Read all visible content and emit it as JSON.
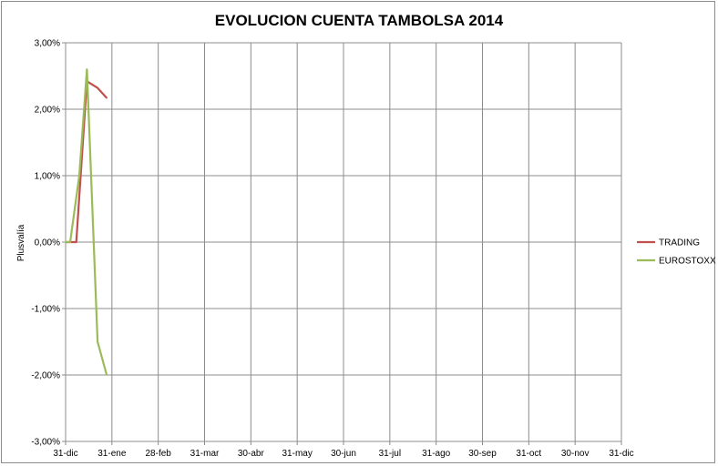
{
  "chart_data": {
    "type": "line",
    "title": "EVOLUCION CUENTA TAMBOLSA 2014",
    "ylabel": "Plusvalía",
    "xlabel": "",
    "x_ticks": [
      "31-dic",
      "31-ene",
      "28-feb",
      "31-mar",
      "30-abr",
      "31-may",
      "30-jun",
      "31-jul",
      "31-ago",
      "30-sep",
      "31-oct",
      "30-nov",
      "31-dic"
    ],
    "ylim": [
      -3,
      3
    ],
    "y_ticks": [
      3,
      2,
      1,
      0,
      -1,
      -2,
      -3
    ],
    "y_tick_labels": [
      "3,00%",
      "2,00%",
      "1,00%",
      "0,00%",
      "-1,00%",
      "-2,00%",
      "-3,00%"
    ],
    "x_range": [
      "2013-12-31",
      "2014-12-31"
    ],
    "grid": true,
    "legend_position": "right",
    "series": [
      {
        "name": "TRADING",
        "color": "#c0504d",
        "points": [
          {
            "x": "2013-12-31",
            "y": 0.0
          },
          {
            "x": "2014-01-07",
            "y": 0.0
          },
          {
            "x": "2014-01-14",
            "y": 2.42
          },
          {
            "x": "2014-01-21",
            "y": 2.32
          },
          {
            "x": "2014-01-27",
            "y": 2.17
          }
        ]
      },
      {
        "name": "EUROSTOXX",
        "color": "#9bbb59",
        "points": [
          {
            "x": "2013-12-31",
            "y": 0.0
          },
          {
            "x": "2014-01-03",
            "y": 0.0
          },
          {
            "x": "2014-01-09",
            "y": 1.0
          },
          {
            "x": "2014-01-14",
            "y": 2.6
          },
          {
            "x": "2014-01-21",
            "y": -1.5
          },
          {
            "x": "2014-01-27",
            "y": -2.0
          }
        ]
      }
    ]
  }
}
